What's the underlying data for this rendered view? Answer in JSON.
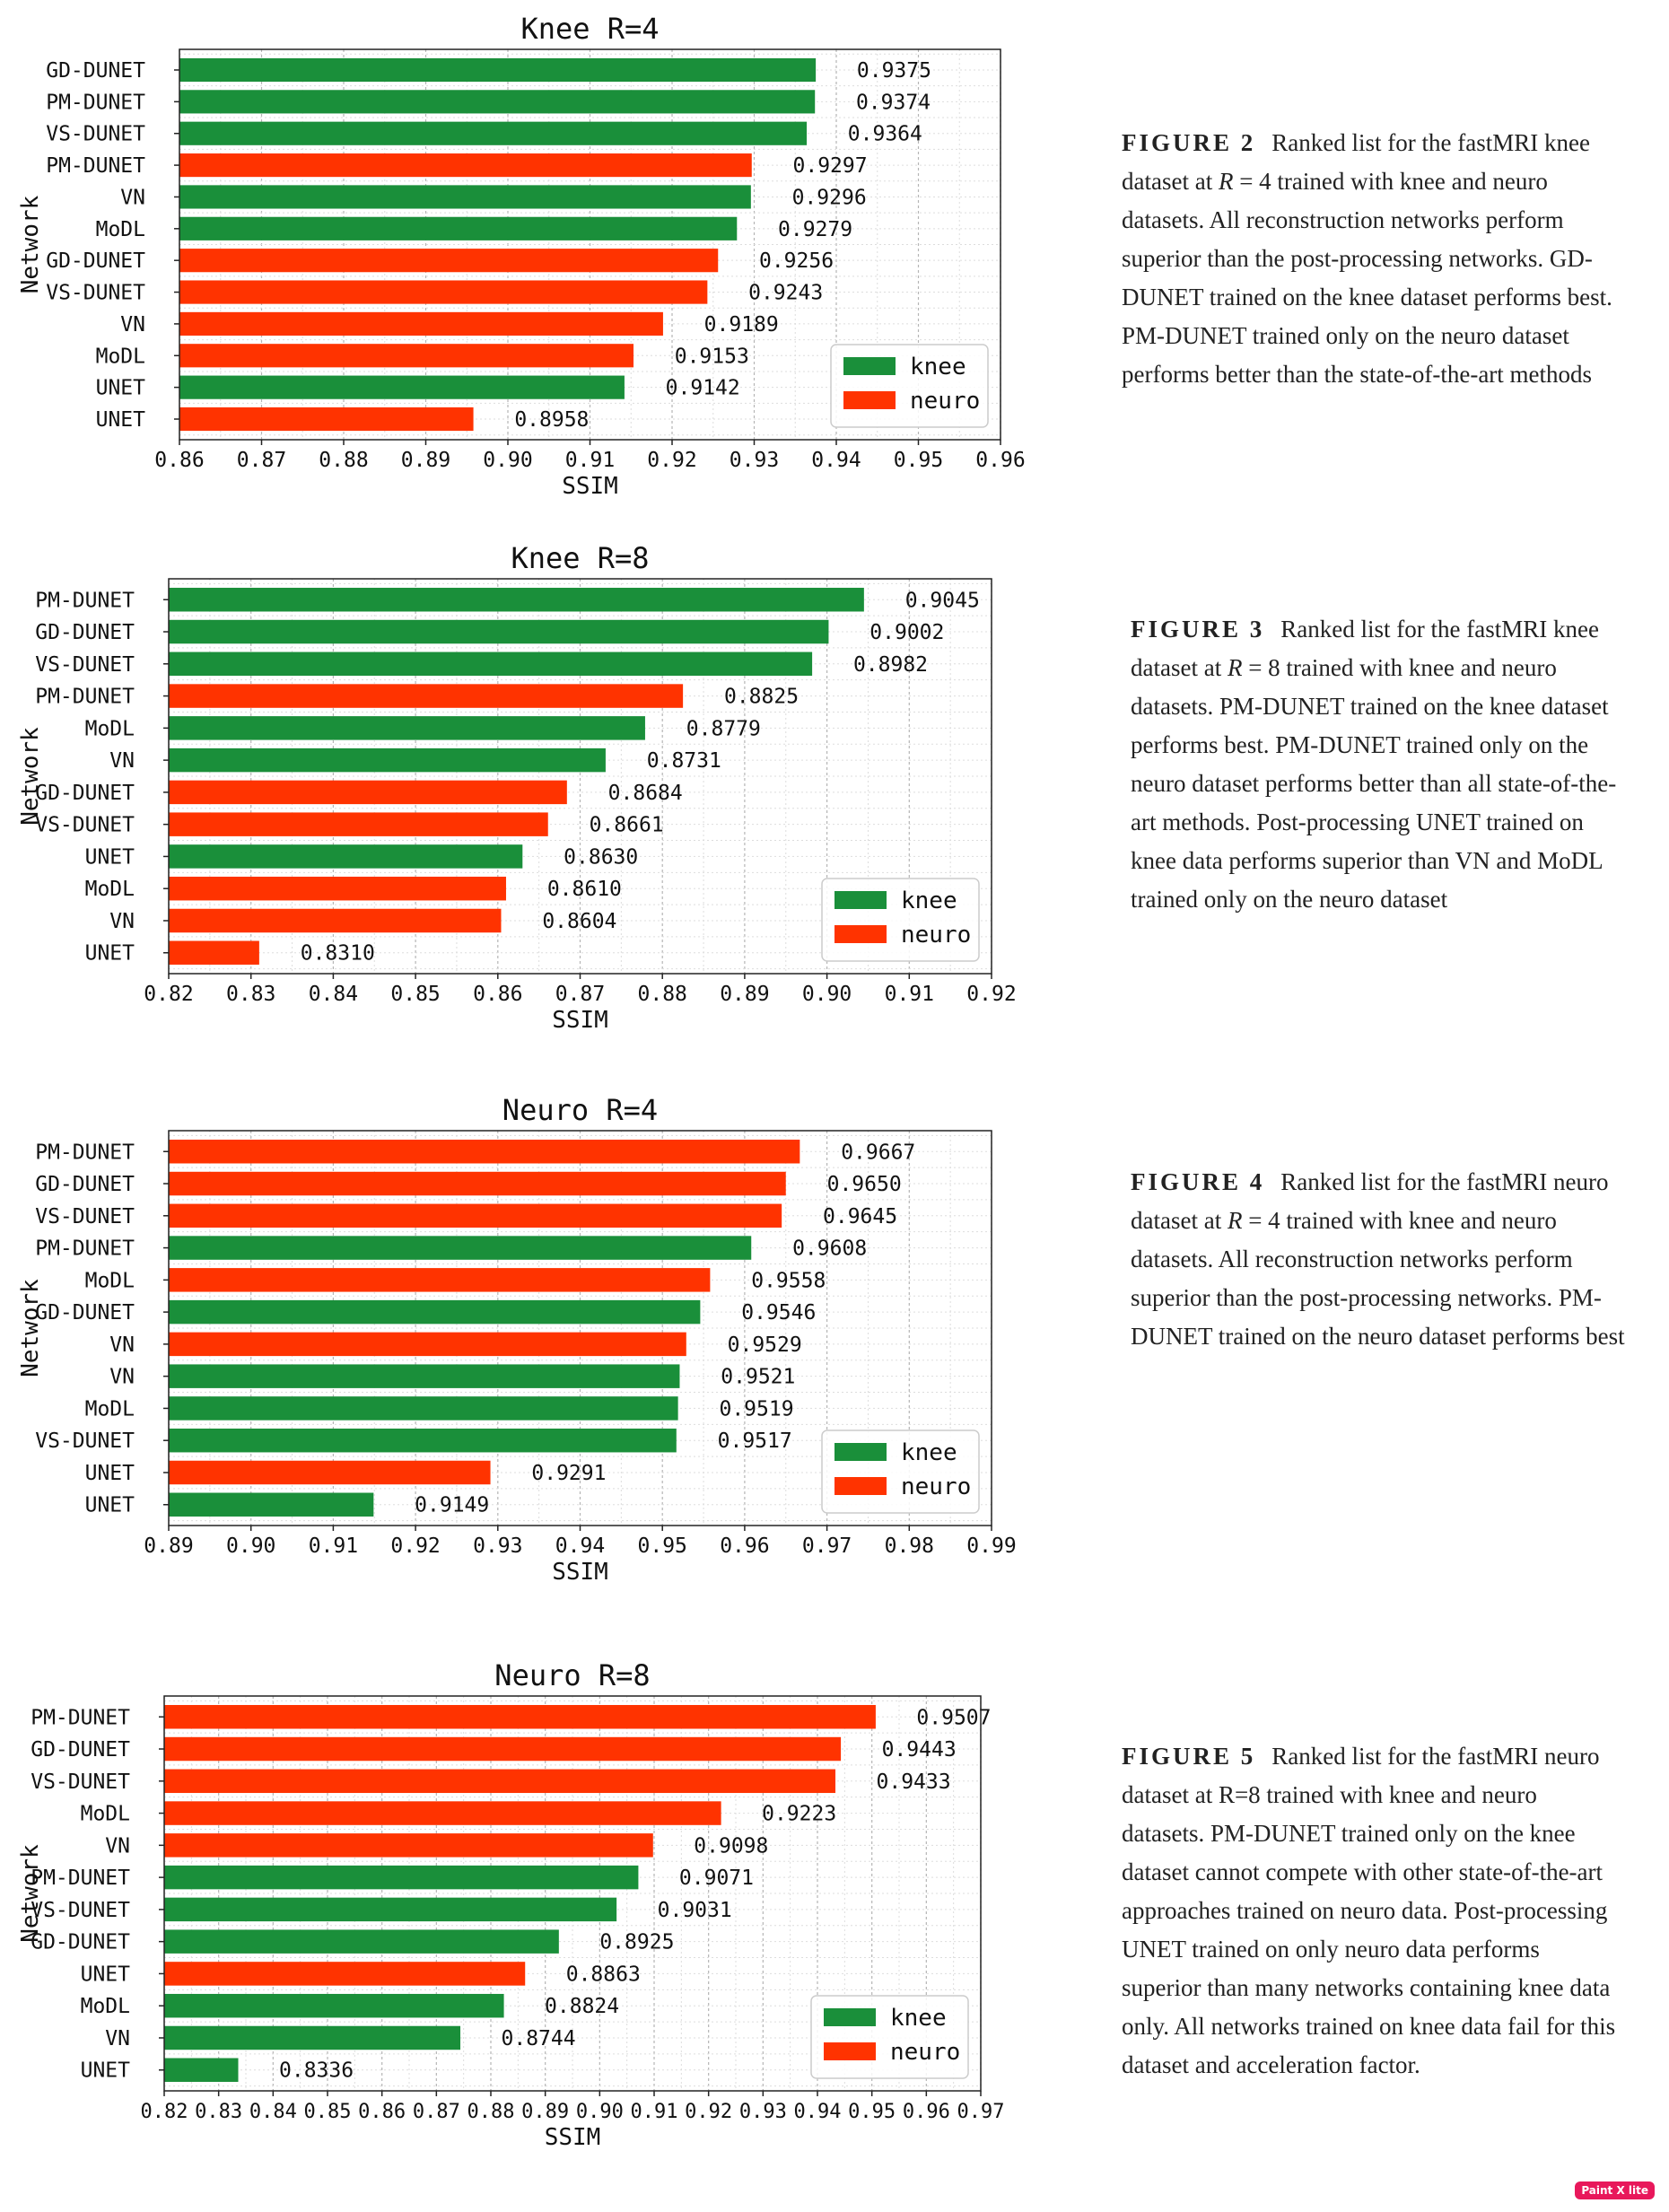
{
  "colors": {
    "knee": "#1a8f3a",
    "neuro": "#ff3300"
  },
  "chart_data": [
    {
      "type": "bar",
      "orientation": "horizontal",
      "title": "Knee R=4",
      "xlabel": "SSIM",
      "ylabel": "Network",
      "xlim": [
        0.86,
        0.96
      ],
      "xticks": [
        "0.86",
        "0.87",
        "0.88",
        "0.89",
        "0.90",
        "0.91",
        "0.92",
        "0.93",
        "0.94",
        "0.95",
        "0.96"
      ],
      "grid": true,
      "legend": {
        "position": "bottom-right",
        "entries": [
          {
            "name": "knee",
            "series": "knee"
          },
          {
            "name": "neuro",
            "series": "neuro"
          }
        ]
      },
      "bars": [
        {
          "label": "GD-DUNET",
          "value": 0.9375,
          "value_label": "0.9375",
          "series": "knee"
        },
        {
          "label": "PM-DUNET",
          "value": 0.9374,
          "value_label": "0.9374",
          "series": "knee"
        },
        {
          "label": "VS-DUNET",
          "value": 0.9364,
          "value_label": "0.9364",
          "series": "knee"
        },
        {
          "label": "PM-DUNET",
          "value": 0.9297,
          "value_label": "0.9297",
          "series": "neuro"
        },
        {
          "label": "VN",
          "value": 0.9296,
          "value_label": "0.9296",
          "series": "knee"
        },
        {
          "label": "MoDL",
          "value": 0.9279,
          "value_label": "0.9279",
          "series": "knee"
        },
        {
          "label": "GD-DUNET",
          "value": 0.9256,
          "value_label": "0.9256",
          "series": "neuro"
        },
        {
          "label": "VS-DUNET",
          "value": 0.9243,
          "value_label": "0.9243",
          "series": "neuro"
        },
        {
          "label": "VN",
          "value": 0.9189,
          "value_label": "0.9189",
          "series": "neuro"
        },
        {
          "label": "MoDL",
          "value": 0.9153,
          "value_label": "0.9153",
          "series": "neuro"
        },
        {
          "label": "UNET",
          "value": 0.9142,
          "value_label": "0.9142",
          "series": "knee"
        },
        {
          "label": "UNET",
          "value": 0.8958,
          "value_label": "0.8958",
          "series": "neuro"
        }
      ]
    },
    {
      "type": "bar",
      "orientation": "horizontal",
      "title": "Knee R=8",
      "xlabel": "SSIM",
      "ylabel": "Network",
      "xlim": [
        0.82,
        0.92
      ],
      "xticks": [
        "0.82",
        "0.83",
        "0.84",
        "0.85",
        "0.86",
        "0.87",
        "0.88",
        "0.89",
        "0.90",
        "0.91",
        "0.92"
      ],
      "grid": true,
      "legend": {
        "position": "bottom-right",
        "entries": [
          {
            "name": "knee",
            "series": "knee"
          },
          {
            "name": "neuro",
            "series": "neuro"
          }
        ]
      },
      "bars": [
        {
          "label": "PM-DUNET",
          "value": 0.9045,
          "value_label": "0.9045",
          "series": "knee"
        },
        {
          "label": "GD-DUNET",
          "value": 0.9002,
          "value_label": "0.9002",
          "series": "knee"
        },
        {
          "label": "VS-DUNET",
          "value": 0.8982,
          "value_label": "0.8982",
          "series": "knee"
        },
        {
          "label": "PM-DUNET",
          "value": 0.8825,
          "value_label": "0.8825",
          "series": "neuro"
        },
        {
          "label": "MoDL",
          "value": 0.8779,
          "value_label": "0.8779",
          "series": "knee"
        },
        {
          "label": "VN",
          "value": 0.8731,
          "value_label": "0.8731",
          "series": "knee"
        },
        {
          "label": "GD-DUNET",
          "value": 0.8684,
          "value_label": "0.8684",
          "series": "neuro"
        },
        {
          "label": "VS-DUNET",
          "value": 0.8661,
          "value_label": "0.8661",
          "series": "neuro"
        },
        {
          "label": "UNET",
          "value": 0.863,
          "value_label": "0.8630",
          "series": "knee"
        },
        {
          "label": "MoDL",
          "value": 0.861,
          "value_label": "0.8610",
          "series": "neuro"
        },
        {
          "label": "VN",
          "value": 0.8604,
          "value_label": "0.8604",
          "series": "neuro"
        },
        {
          "label": "UNET",
          "value": 0.831,
          "value_label": "0.8310",
          "series": "neuro"
        }
      ]
    },
    {
      "type": "bar",
      "orientation": "horizontal",
      "title": "Neuro R=4",
      "xlabel": "SSIM",
      "ylabel": "Network",
      "xlim": [
        0.89,
        0.99
      ],
      "xticks": [
        "0.89",
        "0.90",
        "0.91",
        "0.92",
        "0.93",
        "0.94",
        "0.95",
        "0.96",
        "0.97",
        "0.98",
        "0.99"
      ],
      "grid": true,
      "legend": {
        "position": "bottom-right",
        "entries": [
          {
            "name": "knee",
            "series": "knee"
          },
          {
            "name": "neuro",
            "series": "neuro"
          }
        ]
      },
      "bars": [
        {
          "label": "PM-DUNET",
          "value": 0.9667,
          "value_label": "0.9667",
          "series": "neuro"
        },
        {
          "label": "GD-DUNET",
          "value": 0.965,
          "value_label": "0.9650",
          "series": "neuro"
        },
        {
          "label": "VS-DUNET",
          "value": 0.9645,
          "value_label": "0.9645",
          "series": "neuro"
        },
        {
          "label": "PM-DUNET",
          "value": 0.9608,
          "value_label": "0.9608",
          "series": "knee"
        },
        {
          "label": "MoDL",
          "value": 0.9558,
          "value_label": "0.9558",
          "series": "neuro"
        },
        {
          "label": "GD-DUNET",
          "value": 0.9546,
          "value_label": "0.9546",
          "series": "knee"
        },
        {
          "label": "VN",
          "value": 0.9529,
          "value_label": "0.9529",
          "series": "neuro"
        },
        {
          "label": "VN",
          "value": 0.9521,
          "value_label": "0.9521",
          "series": "knee"
        },
        {
          "label": "MoDL",
          "value": 0.9519,
          "value_label": "0.9519",
          "series": "knee"
        },
        {
          "label": "VS-DUNET",
          "value": 0.9517,
          "value_label": "0.9517",
          "series": "knee"
        },
        {
          "label": "UNET",
          "value": 0.9291,
          "value_label": "0.9291",
          "series": "neuro"
        },
        {
          "label": "UNET",
          "value": 0.9149,
          "value_label": "0.9149",
          "series": "knee"
        }
      ]
    },
    {
      "type": "bar",
      "orientation": "horizontal",
      "title": "Neuro R=8",
      "xlabel": "SSIM",
      "ylabel": "Network",
      "xlim": [
        0.82,
        0.97
      ],
      "xticks": [
        "0.82",
        "0.83",
        "0.84",
        "0.85",
        "0.86",
        "0.87",
        "0.88",
        "0.89",
        "0.90",
        "0.91",
        "0.92",
        "0.93",
        "0.94",
        "0.95",
        "0.96",
        "0.97"
      ],
      "grid": true,
      "legend": {
        "position": "bottom-right",
        "entries": [
          {
            "name": "knee",
            "series": "knee"
          },
          {
            "name": "neuro",
            "series": "neuro"
          }
        ]
      },
      "bars": [
        {
          "label": "PM-DUNET",
          "value": 0.9507,
          "value_label": "0.9507",
          "series": "neuro"
        },
        {
          "label": "GD-DUNET",
          "value": 0.9443,
          "value_label": "0.9443",
          "series": "neuro"
        },
        {
          "label": "VS-DUNET",
          "value": 0.9433,
          "value_label": "0.9433",
          "series": "neuro"
        },
        {
          "label": "MoDL",
          "value": 0.9223,
          "value_label": "0.9223",
          "series": "neuro"
        },
        {
          "label": "VN",
          "value": 0.9098,
          "value_label": "0.9098",
          "series": "neuro"
        },
        {
          "label": "PM-DUNET",
          "value": 0.9071,
          "value_label": "0.9071",
          "series": "knee"
        },
        {
          "label": "VS-DUNET",
          "value": 0.9031,
          "value_label": "0.9031",
          "series": "knee"
        },
        {
          "label": "GD-DUNET",
          "value": 0.8925,
          "value_label": "0.8925",
          "series": "knee"
        },
        {
          "label": "UNET",
          "value": 0.8863,
          "value_label": "0.8863",
          "series": "neuro"
        },
        {
          "label": "MoDL",
          "value": 0.8824,
          "value_label": "0.8824",
          "series": "knee"
        },
        {
          "label": "VN",
          "value": 0.8744,
          "value_label": "0.8744",
          "series": "knee"
        },
        {
          "label": "UNET",
          "value": 0.8336,
          "value_label": "0.8336",
          "series": "knee"
        }
      ]
    }
  ],
  "captions": [
    {
      "label": "FIGURE 2",
      "text_before": "Ranked list for the fastMRI knee dataset at ",
      "var": "R",
      "text_after": " = 4 trained with knee and neuro datasets. All reconstruction networks perform superior than the post-processing networks. GD-DUNET trained on the knee dataset performs best. PM-DUNET trained only on the neuro dataset performs better than the state-of-the-art methods"
    },
    {
      "label": "FIGURE 3",
      "text_before": "Ranked list for the fastMRI knee dataset at ",
      "var": "R",
      "text_after": " = 8 trained with knee and neuro datasets. PM-DUNET trained on the knee dataset performs best. PM-DUNET trained only on the neuro dataset performs better than all state-of-the-art methods. Post-processing UNET trained on knee data performs superior than VN and MoDL trained only on the neuro dataset"
    },
    {
      "label": "FIGURE 4",
      "text_before": "Ranked list for the fastMRI neuro dataset at ",
      "var": "R",
      "text_after": " = 4 trained with knee and neuro datasets. All reconstruction networks perform superior than the post-processing networks. PM-DUNET trained on the neuro dataset performs best"
    },
    {
      "label": "FIGURE 5",
      "text_before": "Ranked list for the fastMRI neuro dataset at R=8 trained with knee and neuro datasets. PM-DUNET trained only on the knee dataset cannot compete with other state-of-the-art approaches trained on neuro data. Post-processing UNET trained on only neuro data performs superior than many networks containing knee data only. All networks trained on knee data fail for this dataset and acceleration factor.",
      "var": "",
      "text_after": ""
    }
  ],
  "watermark": {
    "text": "Paint X lite"
  }
}
